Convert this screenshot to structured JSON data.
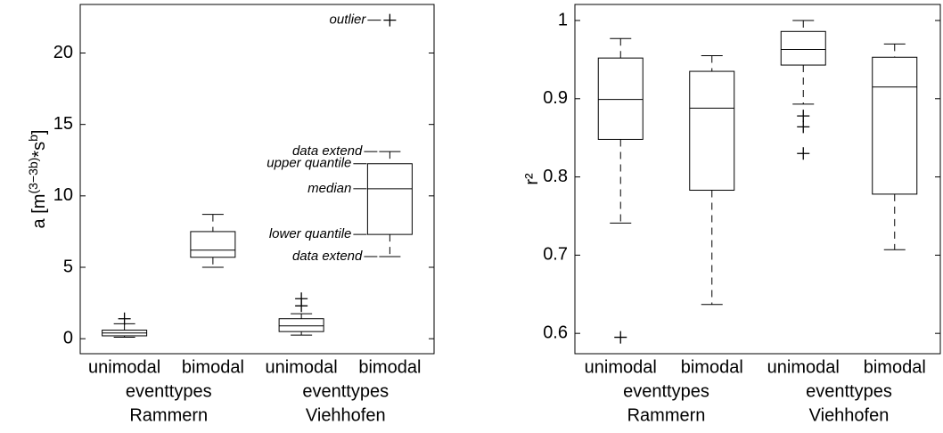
{
  "chart_data": [
    {
      "type": "box",
      "categories": [
        "unimodal",
        "bimodal",
        "unimodal",
        "bimodal"
      ],
      "groups": [
        {
          "label": "eventtypes",
          "name": "Rammern"
        },
        {
          "label": "eventtypes",
          "name": "Viehhofen"
        }
      ],
      "ylabel_parts": [
        {
          "text": "a [m"
        },
        {
          "text": "(3−3b)",
          "sup": true
        },
        {
          "text": "*s"
        },
        {
          "text": "b",
          "sup": true
        },
        {
          "text": "]"
        }
      ],
      "ylim": [
        -1.05,
        23.4
      ],
      "yticks": [
        0,
        5,
        10,
        15,
        20
      ],
      "color": "#000000",
      "boxes": [
        {
          "low": 0.1,
          "q1": 0.2,
          "median": 0.4,
          "q3": 0.6,
          "high": 1.05,
          "outliers": [
            1.4
          ]
        },
        {
          "low": 5.0,
          "q1": 5.7,
          "median": 6.2,
          "q3": 7.5,
          "high": 8.7,
          "outliers": []
        },
        {
          "low": 0.25,
          "q1": 0.5,
          "median": 0.9,
          "q3": 1.4,
          "high": 1.75,
          "outliers": [
            2.3,
            2.8
          ]
        },
        {
          "low": 5.75,
          "q1": 7.3,
          "median": 10.5,
          "q3": 12.25,
          "high": 13.1,
          "outliers": [
            22.3
          ]
        }
      ],
      "annotations": [
        "outlier",
        "data extend",
        "upper quantile",
        "median",
        "lower quantile",
        "data extend"
      ]
    },
    {
      "type": "box",
      "categories": [
        "unimodal",
        "bimodal",
        "unimodal",
        "bimodal"
      ],
      "groups": [
        {
          "label": "eventtypes",
          "name": "Rammern"
        },
        {
          "label": "eventtypes",
          "name": "Viehhofen"
        }
      ],
      "ylabel_parts": [
        {
          "text": "r²"
        }
      ],
      "ylim": [
        0.574,
        1.0205
      ],
      "yticks": [
        0.6,
        0.7,
        0.8,
        0.9,
        1
      ],
      "color": "#000000",
      "boxes": [
        {
          "low": 0.741,
          "q1": 0.848,
          "median": 0.899,
          "q3": 0.952,
          "high": 0.977,
          "outliers": [
            0.595
          ]
        },
        {
          "low": 0.637,
          "q1": 0.783,
          "median": 0.888,
          "q3": 0.935,
          "high": 0.955,
          "outliers": []
        },
        {
          "low": 0.893,
          "q1": 0.943,
          "median": 0.963,
          "q3": 0.986,
          "high": 1.0,
          "outliers": [
            0.878,
            0.864,
            0.83
          ]
        },
        {
          "low": 0.707,
          "q1": 0.778,
          "median": 0.915,
          "q3": 0.953,
          "high": 0.97,
          "outliers": []
        }
      ]
    }
  ]
}
